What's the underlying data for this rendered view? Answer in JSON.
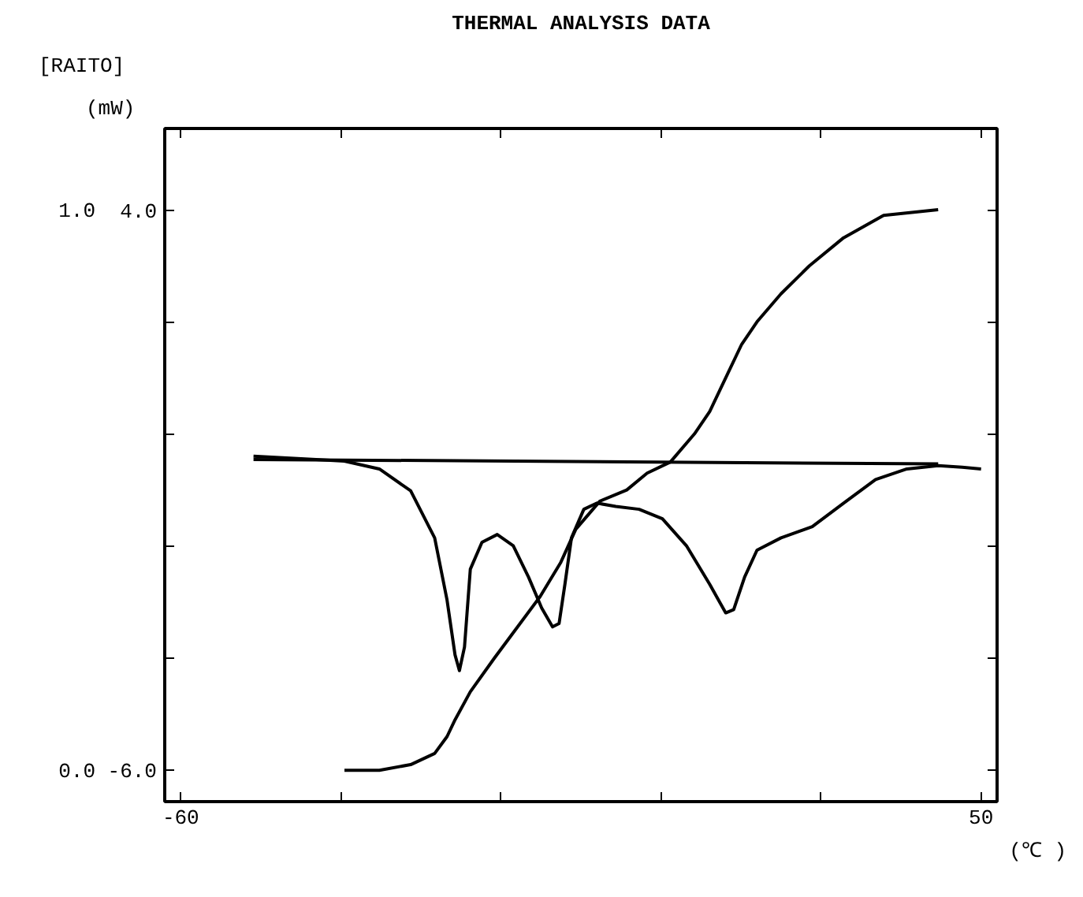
{
  "chart_data": {
    "type": "line",
    "title": "THERMAL ANALYSIS DATA",
    "xlabel": "(℃ )",
    "ylabel": "(mW)",
    "y2label": "[RAITO]",
    "xlim": [
      -62.2,
      52.2
    ],
    "ylim": [
      -6.56,
      5.46
    ],
    "y2lim": [
      -0.056,
      1.145
    ],
    "xticks": [
      {
        "value": -60,
        "label": "-60"
      },
      {
        "value": -38,
        "label": null
      },
      {
        "value": -16,
        "label": null
      },
      {
        "value": 6,
        "label": null
      },
      {
        "value": 28,
        "label": null
      },
      {
        "value": 50,
        "label": "50"
      }
    ],
    "yticks": [
      {
        "value": 4.0,
        "label": "4.0"
      },
      {
        "value": 2.0,
        "label": null
      },
      {
        "value": 0.0,
        "label": null
      },
      {
        "value": -2.0,
        "label": null
      },
      {
        "value": -4.0,
        "label": null
      },
      {
        "value": -6.0,
        "label": "-6.0"
      }
    ],
    "y2ticks": [
      {
        "value": 1.0,
        "label": "1.0"
      },
      {
        "value": 0.0,
        "label": "0.0"
      }
    ],
    "series": [
      {
        "color": "#000000",
        "x": [
          -50.0,
          -41.4,
          -37.5,
          -32.7,
          -28.4,
          -25.1,
          -23.4,
          -22.3,
          -21.7,
          -21.0,
          -20.2,
          -18.6,
          -16.5,
          -14.3,
          -12.2,
          -10.4,
          -8.9,
          -8.0,
          -7.2,
          -6.3,
          -4.6,
          -2.8,
          -0.2,
          3.0,
          6.2,
          9.5,
          12.7,
          14.9,
          16.0,
          17.5,
          19.2,
          22.5,
          26.8,
          31.1,
          35.5,
          39.8,
          44.1,
          47.4,
          50.0
        ],
        "values": [
          -0.39,
          -0.45,
          -0.48,
          -0.62,
          -1.01,
          -1.85,
          -2.96,
          -3.94,
          -4.22,
          -3.8,
          -2.41,
          -1.93,
          -1.79,
          -1.99,
          -2.55,
          -3.1,
          -3.44,
          -3.38,
          -2.68,
          -1.85,
          -1.34,
          -1.23,
          -1.29,
          -1.34,
          -1.51,
          -1.99,
          -2.68,
          -3.19,
          -3.13,
          -2.55,
          -2.07,
          -1.85,
          -1.65,
          -1.23,
          -0.81,
          -0.62,
          -0.56,
          -0.59,
          -0.62
        ]
      },
      {
        "color": "#000000",
        "x": [
          -50.0,
          44.1
        ],
        "values": [
          -0.45,
          -0.53
        ]
      },
      {
        "color": "#000000",
        "axis": "y2",
        "x": [
          -37.5,
          -32.7,
          -28.4,
          -25.1,
          -23.4,
          -22.3,
          -20.2,
          -16.9,
          -10.6,
          -7.8,
          -5.7,
          -2.4,
          1.3,
          4.1,
          7.3,
          10.6,
          12.7,
          14.9,
          17.1,
          19.2,
          22.5,
          26.4,
          31.1,
          36.6,
          44.1
        ],
        "values": [
          0.0,
          0.0,
          0.01,
          0.03,
          0.06,
          0.09,
          0.14,
          0.2,
          0.31,
          0.37,
          0.43,
          0.48,
          0.5,
          0.53,
          0.55,
          0.6,
          0.64,
          0.7,
          0.76,
          0.8,
          0.85,
          0.9,
          0.95,
          0.99,
          1.0
        ]
      }
    ]
  }
}
